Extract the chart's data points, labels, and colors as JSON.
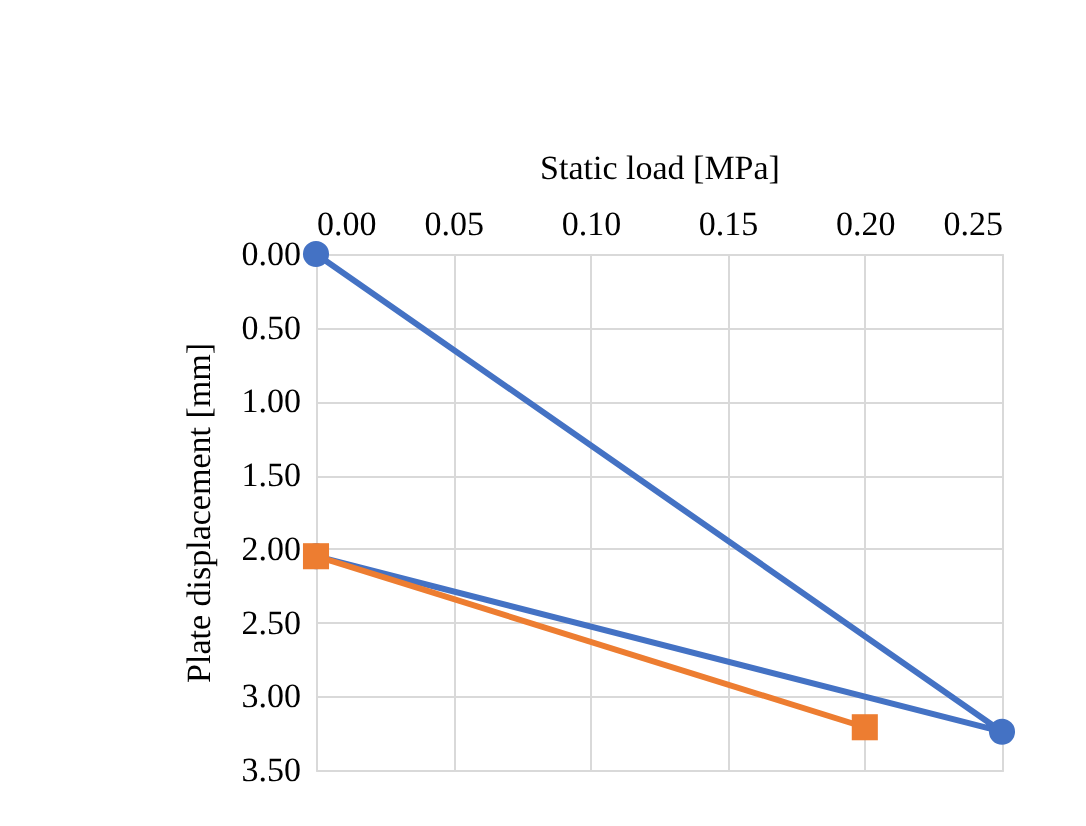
{
  "chart_data": {
    "type": "line",
    "xlabel": "Static load [MPa]",
    "ylabel": "Plate displacement [mm]",
    "xlim": [
      0,
      0.25
    ],
    "xticks": [
      {
        "value": 0,
        "label": "0.00"
      },
      {
        "value": 0.05,
        "label": "0.05"
      },
      {
        "value": 0.1,
        "label": "0.10"
      },
      {
        "value": 0.15,
        "label": "0.15"
      },
      {
        "value": 0.2,
        "label": "0.20"
      },
      {
        "value": 0.25,
        "label": "0.25"
      }
    ],
    "ylim": [
      3.5,
      0
    ],
    "yticks": [
      {
        "value": 0,
        "label": "0.00"
      },
      {
        "value": 0.5,
        "label": "0.50"
      },
      {
        "value": 1,
        "label": "1.00"
      },
      {
        "value": 1.5,
        "label": "1.50"
      },
      {
        "value": 2,
        "label": "2.00"
      },
      {
        "value": 2.5,
        "label": "2.50"
      },
      {
        "value": 3,
        "label": "3.00"
      },
      {
        "value": 3.5,
        "label": "3.50"
      }
    ],
    "grid": true,
    "series": [
      {
        "color": "#4472c4",
        "marker": "circle",
        "x": [
          0,
          0.25,
          0
        ],
        "values": [
          0,
          3.24,
          2.05
        ]
      },
      {
        "color": "#ed7d31",
        "marker": "square",
        "x": [
          0,
          0.2
        ],
        "values": [
          2.05,
          3.21
        ]
      }
    ]
  }
}
